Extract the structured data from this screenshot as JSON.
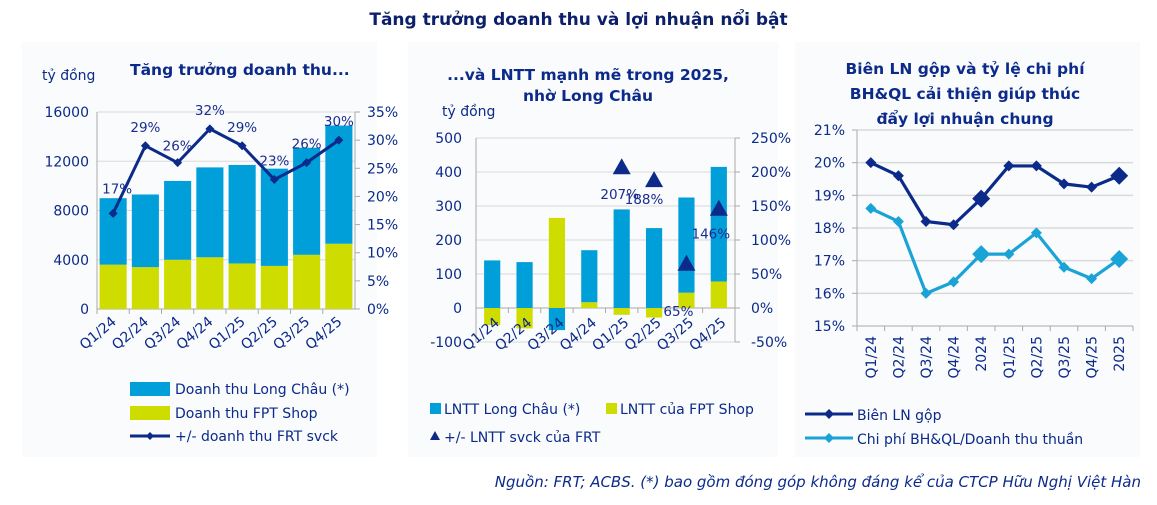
{
  "main_title": "Tăng trưởng doanh thu và lợi nhuận nổi bật",
  "source_note": "Nguồn: FRT; ACBS. (*) bao gồm đóng góp không đáng kể của CTCP Hữu Nghị Việt Hàn",
  "colors": {
    "long_chau": "#009fd9",
    "fpt_shop": "#cfdc00",
    "navy": "#0b2a8a",
    "light_blue": "#1aa3d6",
    "grid": "#d9d9d9"
  },
  "chart_data": [
    {
      "type": "bar",
      "stacked": true,
      "title": "Tăng trưởng doanh thu...",
      "ylabel": "tỷ đồng",
      "categories": [
        "Q1/24",
        "Q2/24",
        "Q3/24",
        "Q4/24",
        "Q1/25",
        "Q2/25",
        "Q3/25",
        "Q4/25"
      ],
      "ylim": [
        0,
        16000
      ],
      "yticks": [
        "0",
        "4000",
        "8000",
        "12000",
        "16000"
      ],
      "y2lim": [
        0,
        35
      ],
      "y2ticks": [
        "0%",
        "5%",
        "10%",
        "15%",
        "20%",
        "25%",
        "30%",
        "35%"
      ],
      "series": [
        {
          "name": "Doanh thu Long Châu (*)",
          "kind": "bar",
          "values": [
            5400,
            5900,
            6400,
            7300,
            8000,
            7900,
            8700,
            9600
          ]
        },
        {
          "name": "Doanh thu FPT Shop",
          "kind": "bar",
          "values": [
            3600,
            3400,
            4000,
            4200,
            3700,
            3500,
            4400,
            5300
          ]
        },
        {
          "name": "+/- doanh thu FRT svck",
          "kind": "line",
          "axis": "right",
          "values": [
            17,
            29,
            26,
            32,
            29,
            23,
            26,
            30
          ],
          "labels": [
            "17%",
            "29%",
            "26%",
            "32%",
            "29%",
            "23%",
            "26%",
            "30%"
          ]
        }
      ],
      "legend": "bottom"
    },
    {
      "type": "bar",
      "stacked": true,
      "title": "...và LNTT mạnh mẽ trong 2025, nhờ Long Châu",
      "title_lines": [
        "...và LNTT mạnh mẽ trong 2025,",
        "nhờ Long Châu"
      ],
      "ylabel": "tỷ đồng",
      "categories": [
        "Q1/24",
        "Q2/24",
        "Q3/24",
        "Q4/24",
        "Q1/25",
        "Q2/25",
        "Q3/25",
        "Q4/25"
      ],
      "ylim": [
        -100,
        500
      ],
      "yticks": [
        "-100",
        "0",
        "100",
        "200",
        "300",
        "400",
        "500"
      ],
      "y2lim": [
        -50,
        250
      ],
      "y2ticks": [
        "-50%",
        "0%",
        "50%",
        "100%",
        "150%",
        "200%",
        "250%"
      ],
      "series": [
        {
          "name": "LNTT Long Châu (*)",
          "kind": "bar",
          "values": [
            140,
            135,
            -65,
            153,
            290,
            235,
            280,
            337
          ]
        },
        {
          "name": "LNTT của FPT Shop",
          "kind": "bar",
          "values": [
            -50,
            -60,
            265,
            17,
            -20,
            -28,
            45,
            78
          ]
        },
        {
          "name": "+/- LNTT svck của FRT",
          "kind": "marker",
          "axis": "right",
          "values": [
            null,
            null,
            null,
            null,
            207,
            188,
            65,
            146
          ],
          "labels": [
            "",
            "",
            "",
            "",
            "207%",
            "188%",
            "65%",
            "146%"
          ]
        }
      ],
      "legend": "bottom"
    },
    {
      "type": "line",
      "title": "Biên LN gộp và tỷ lệ chi phí BH&QL cải thiện giúp thúc đẩy lợi nhuận chung",
      "title_lines": [
        "Biên LN gộp và tỷ lệ chi phí",
        "BH&QL cải thiện giúp thúc",
        "đẩy lợi nhuận chung"
      ],
      "categories": [
        "Q1/24",
        "Q2/24",
        "Q3/24",
        "Q4/24",
        "2024",
        "Q1/25",
        "Q2/25",
        "Q3/25",
        "Q4/25",
        "2025"
      ],
      "ylim": [
        15,
        21
      ],
      "yticks": [
        "15%",
        "16%",
        "17%",
        "18%",
        "19%",
        "20%",
        "21%"
      ],
      "series": [
        {
          "name": "Biên LN gộp",
          "values": [
            20.0,
            19.6,
            18.2,
            18.1,
            18.9,
            19.9,
            19.9,
            19.35,
            19.25,
            19.6
          ]
        },
        {
          "name": "Chi phí BH&QL/Doanh thu thuần",
          "values": [
            18.6,
            18.2,
            16.0,
            16.35,
            17.2,
            17.2,
            17.85,
            16.8,
            16.45,
            17.05
          ]
        }
      ],
      "annual_points": [
        "2024",
        "2025"
      ],
      "grid": true,
      "legend": "bottom"
    }
  ]
}
